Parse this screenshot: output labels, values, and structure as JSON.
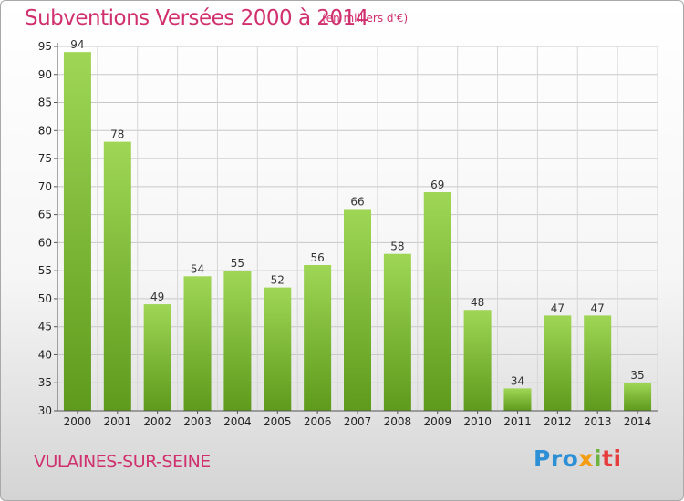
{
  "chart_data": {
    "type": "bar",
    "title": "Subventions Versées 2000 à 2014",
    "subtitle": "(en milliers d'€)",
    "categories": [
      "2000",
      "2001",
      "2002",
      "2003",
      "2004",
      "2005",
      "2006",
      "2007",
      "2008",
      "2009",
      "2010",
      "2011",
      "2012",
      "2013",
      "2014"
    ],
    "values": [
      94,
      78,
      49,
      54,
      55,
      52,
      56,
      66,
      58,
      69,
      48,
      34,
      47,
      47,
      35
    ],
    "ylim": [
      30,
      95
    ],
    "yticks": [
      30,
      35,
      40,
      45,
      50,
      55,
      60,
      65,
      70,
      75,
      80,
      85,
      90,
      95
    ],
    "grid": true,
    "bar_color_top": "#9fd655",
    "bar_color_bottom": "#5e9a1c"
  },
  "footer": {
    "place": "VULAINES-SUR-SEINE",
    "logo": {
      "p1": "Pro",
      "p2": "x",
      "p3": "i",
      "p4": "ti"
    }
  }
}
